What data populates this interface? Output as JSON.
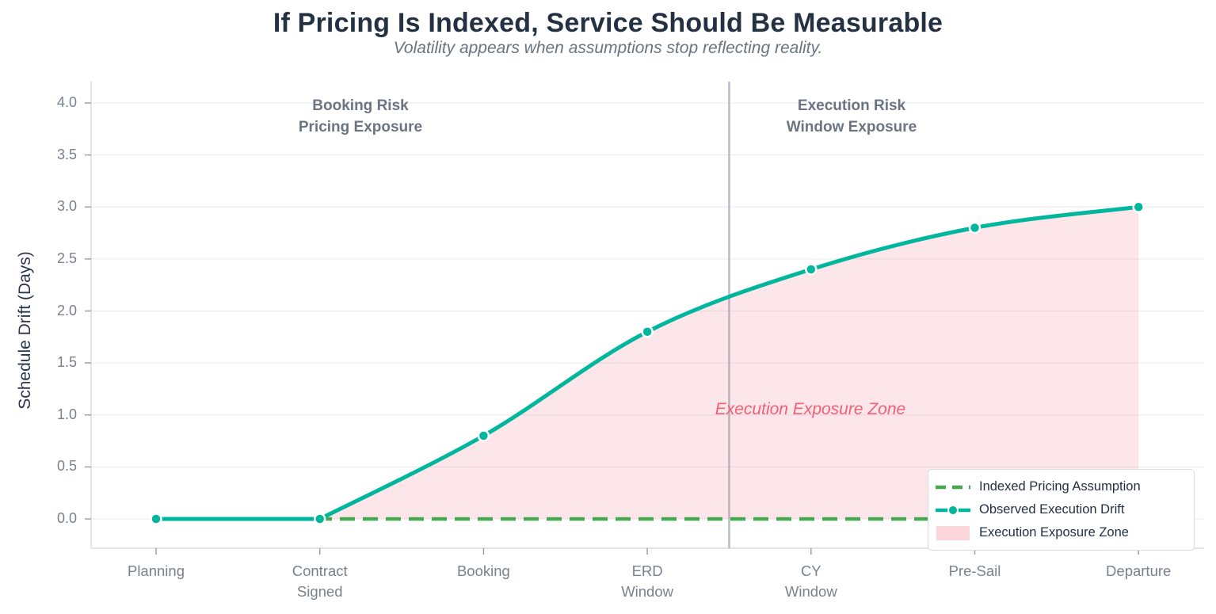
{
  "header": {
    "title": "If Pricing Is Indexed, Service Should Be Measurable",
    "subtitle": "Volatility appears when assumptions stop reflecting reality."
  },
  "colors": {
    "teal": "#00b79e",
    "green": "#46a94f",
    "pink_fill": "rgba(242,98,122,0.16)",
    "pink_swatch": "#fbd4dc",
    "pink_text": "#f25e76",
    "grid": "#ebedf0",
    "spine": "#d9dce1",
    "tick": "#9aa2ad",
    "divider": "#b6bdc7",
    "marker_edge": "#ffffff"
  },
  "chart_data": {
    "type": "line",
    "title": "If Pricing Is Indexed, Service Should Be Measurable",
    "subtitle": "Volatility appears when assumptions stop reflecting reality.",
    "ylabel": "Schedule Drift (Days)",
    "xlabel": "",
    "categories": [
      "Planning",
      "Contract\nSigned",
      "Booking",
      "ERD\nWindow",
      "CY\nWindow",
      "Pre-Sail",
      "Departure"
    ],
    "series": [
      {
        "name": "Indexed Pricing Assumption",
        "style": "dashed",
        "values": [
          0.0,
          0.0,
          0.0,
          0.0,
          0.0,
          0.0,
          0.0
        ]
      },
      {
        "name": "Observed Execution Drift",
        "style": "solid-markers",
        "values": [
          0.0,
          0.0,
          0.8,
          1.8,
          2.4,
          2.8,
          3.0
        ]
      }
    ],
    "fill_zone": {
      "name": "Execution Exposure Zone",
      "start_index": 1,
      "end_index": 6
    },
    "yticks": [
      0.0,
      0.5,
      1.0,
      1.5,
      2.0,
      2.5,
      3.0,
      3.5,
      4.0
    ],
    "ylim": [
      -0.28,
      4.2
    ],
    "grid": "horizontal",
    "divider_x": 3.5,
    "legend_position": "lower-right",
    "annotations": {
      "left_region": "Booking Risk\nPricing Exposure",
      "right_region": "Execution Risk\nWindow Exposure",
      "zone_label": "Execution Exposure Zone"
    }
  },
  "legend": {
    "items": [
      {
        "label": "Indexed Pricing Assumption",
        "swatch": "green-dashed-line"
      },
      {
        "label": "Observed Execution Drift",
        "swatch": "teal-line-with-marker"
      },
      {
        "label": "Execution Exposure Zone",
        "swatch": "pink-area"
      }
    ]
  }
}
